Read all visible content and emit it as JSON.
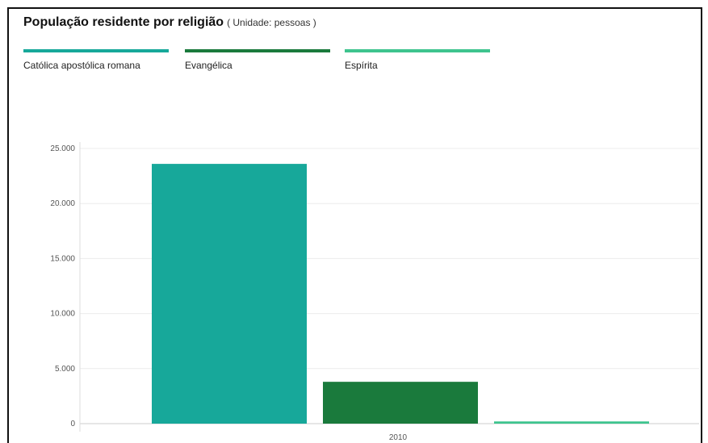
{
  "header": {
    "title": "População residente por religião",
    "unit": "( Unidade: pessoas )"
  },
  "colors": {
    "catolica": "#17a89a",
    "evangelica": "#1a7a3c",
    "espirita": "#3ec48e"
  },
  "chart_data": {
    "type": "bar",
    "title": "População residente por religião",
    "subtitle": "( Unidade: pessoas )",
    "categories": [
      "2010"
    ],
    "series": [
      {
        "name": "Católica apostólica romana",
        "values": [
          23600
        ],
        "color": "#17a89a"
      },
      {
        "name": "Evangélica",
        "values": [
          3800
        ],
        "color": "#1a7a3c"
      },
      {
        "name": "Espírita",
        "values": [
          200
        ],
        "color": "#3ec48e"
      }
    ],
    "y_ticks": [
      "0",
      "5.000",
      "10.000",
      "15.000",
      "20.000",
      "25.000"
    ],
    "ylim": [
      0,
      25000
    ],
    "grid": true,
    "legend_position": "top"
  }
}
